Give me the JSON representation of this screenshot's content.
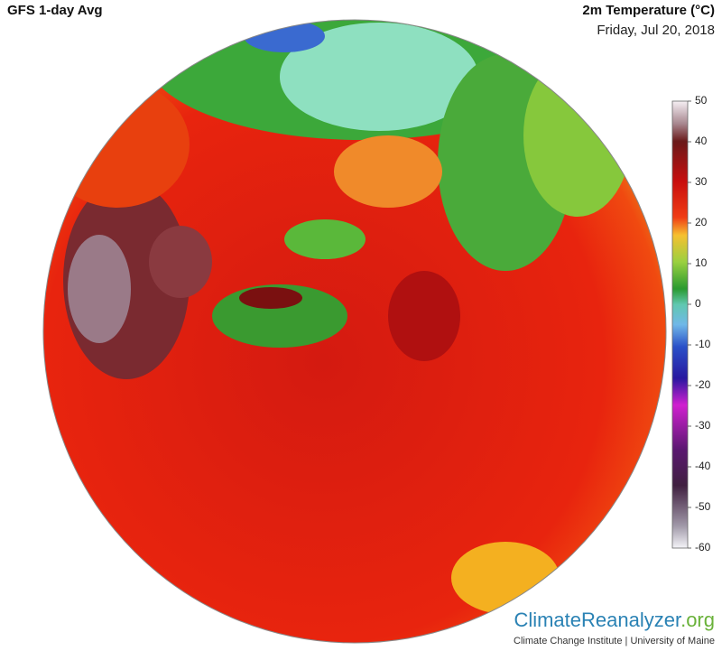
{
  "header": {
    "product": "GFS 1-day Avg",
    "variable": "2m Temperature (°C)",
    "date": "Friday, Jul 20, 2018"
  },
  "colorbar": {
    "lim": [
      50,
      -60
    ],
    "ticks": [
      50,
      40,
      30,
      20,
      10,
      0,
      -10,
      -20,
      -30,
      -40,
      -50,
      -60
    ]
  },
  "footer": {
    "site": "ClimateReanalyzer",
    "domain": ".org",
    "credit": "Climate Change Institute | University of Maine"
  }
}
